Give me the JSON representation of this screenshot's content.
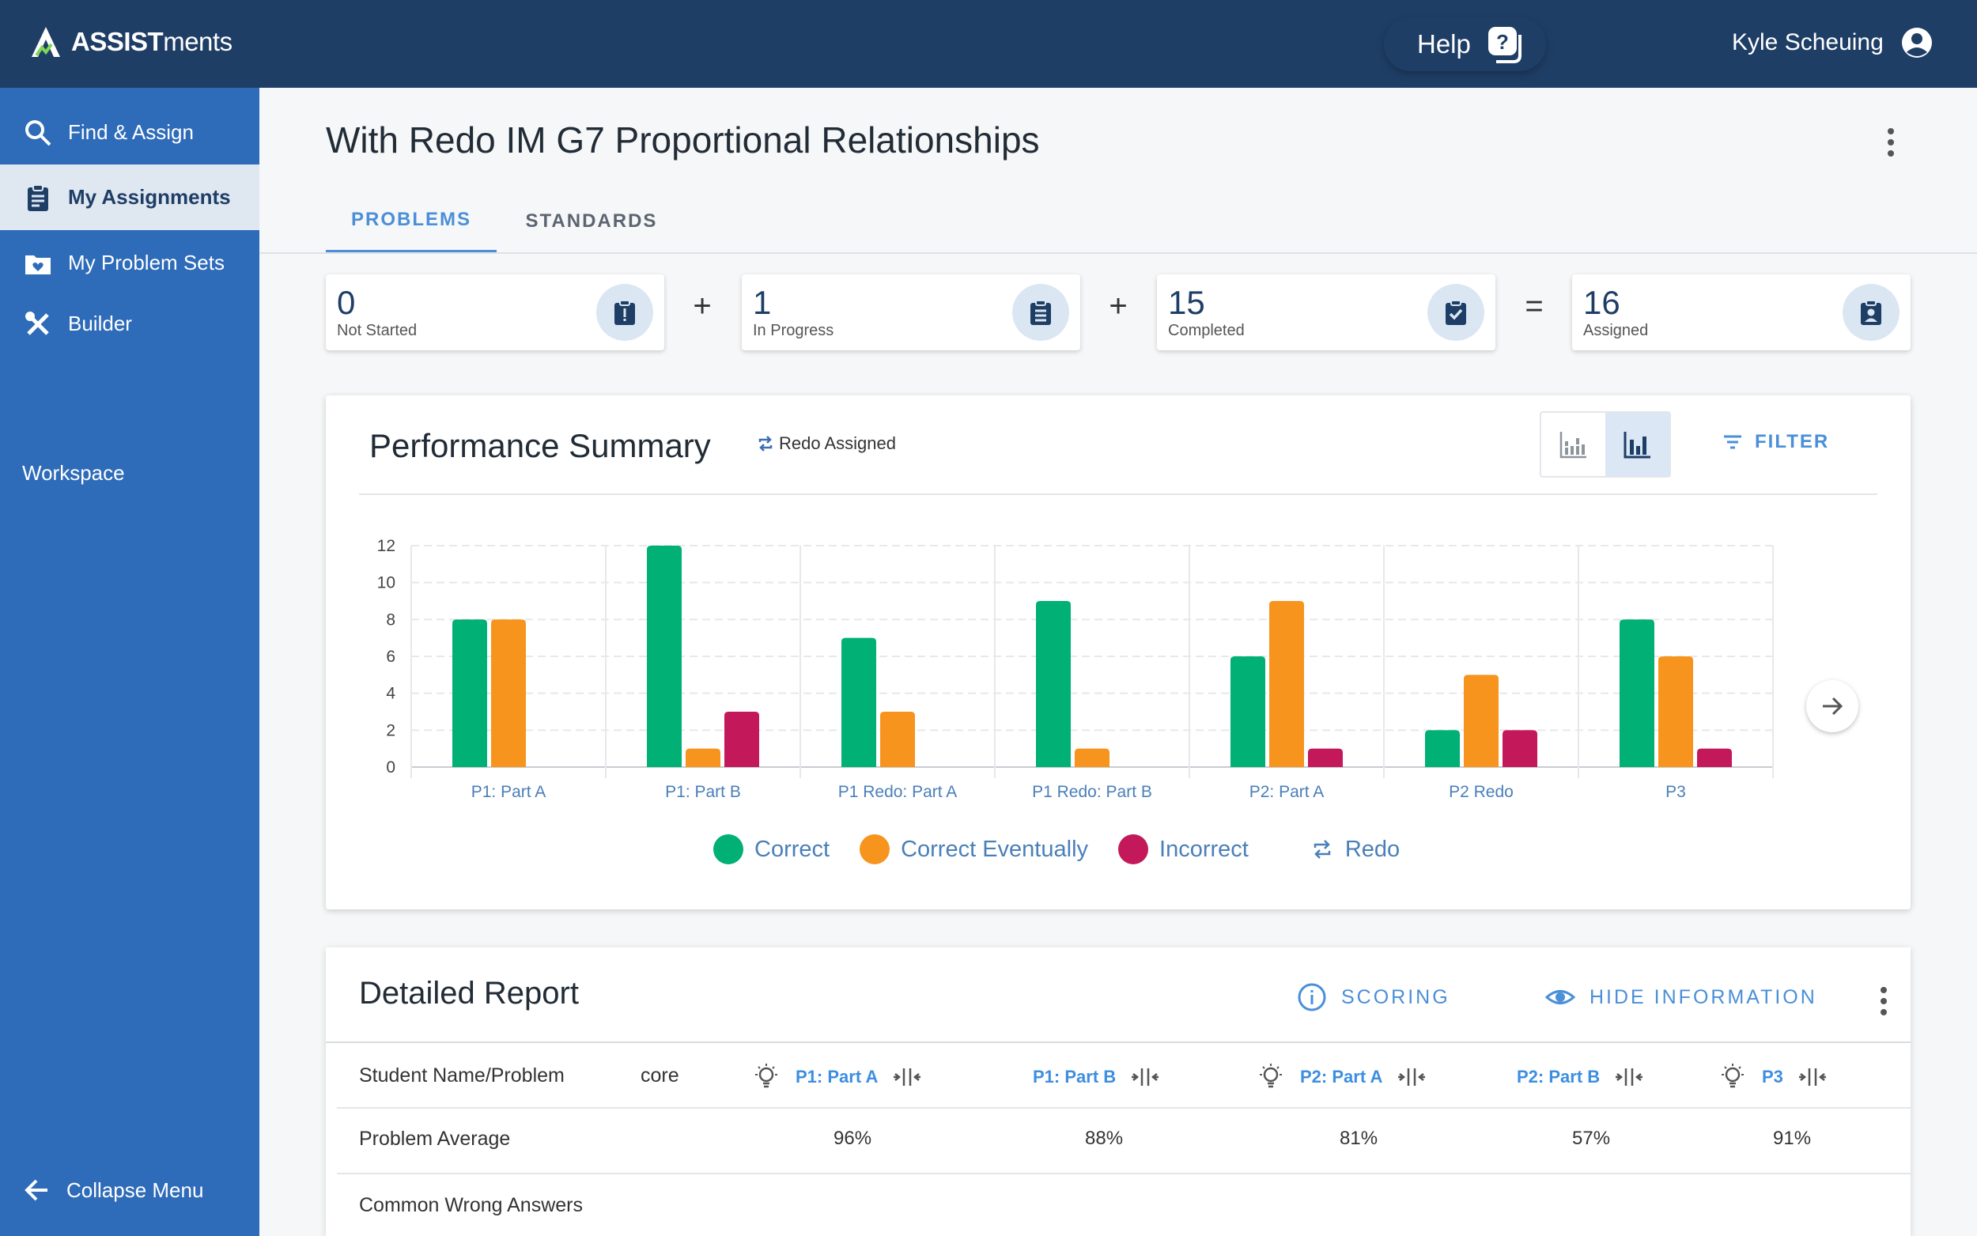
{
  "app": {
    "brand_bold": "ASSIST",
    "brand_rest": "ments",
    "help_label": "Help",
    "user_name": "Kyle Scheuing"
  },
  "sidebar": {
    "items": [
      {
        "label": "Find & Assign",
        "icon": "search-icon"
      },
      {
        "label": "My Assignments",
        "icon": "clipboard-icon",
        "active": true
      },
      {
        "label": "My Problem Sets",
        "icon": "folder-heart-icon"
      },
      {
        "label": "Builder",
        "icon": "tools-icon"
      }
    ],
    "workspace_label": "Workspace",
    "collapse_label": "Collapse Menu"
  },
  "page": {
    "title": "With Redo IM G7 Proportional Relationships",
    "tabs": [
      {
        "label": "PROBLEMS",
        "active": true
      },
      {
        "label": "STANDARDS",
        "active": false
      }
    ]
  },
  "stats": [
    {
      "value": "0",
      "label": "Not Started",
      "icon": "clipboard-alert-icon"
    },
    {
      "value": "1",
      "label": "In Progress",
      "icon": "clipboard-list-icon"
    },
    {
      "value": "15",
      "label": "Completed",
      "icon": "clipboard-check-icon"
    },
    {
      "value": "16",
      "label": "Assigned",
      "icon": "clipboard-account-icon"
    }
  ],
  "operators": [
    "+",
    "+",
    "="
  ],
  "performance": {
    "title": "Performance Summary",
    "redo_assigned_label": "Redo Assigned",
    "filter_label": "FILTER",
    "legend": [
      {
        "label": "Correct",
        "color": "#00b074"
      },
      {
        "label": "Correct Eventually",
        "color": "#f7941d"
      },
      {
        "label": "Incorrect",
        "color": "#c3185a"
      },
      {
        "label": "Redo",
        "icon": "redo-icon"
      }
    ]
  },
  "chart_data": {
    "type": "bar",
    "categories": [
      "P1: Part A",
      "P1: Part B",
      "P1 Redo: Part A",
      "P1 Redo: Part B",
      "P2: Part A",
      "P2 Redo",
      "P3"
    ],
    "series": [
      {
        "name": "Correct",
        "color": "#00b074",
        "values": [
          8,
          12,
          7,
          9,
          6,
          2,
          8
        ]
      },
      {
        "name": "Correct Eventually",
        "color": "#f7941d",
        "values": [
          8,
          1,
          3,
          1,
          9,
          5,
          6
        ]
      },
      {
        "name": "Incorrect",
        "color": "#c3185a",
        "values": [
          0,
          3,
          0,
          0,
          1,
          2,
          1
        ]
      }
    ],
    "yticks": [
      0,
      2,
      4,
      6,
      8,
      10,
      12
    ],
    "ylim": [
      0,
      12
    ],
    "grid": true,
    "legend_position": "bottom"
  },
  "report": {
    "title": "Detailed Report",
    "scoring_label": "SCORING",
    "hide_info_label": "HIDE INFORMATION",
    "student_col_label": "Student Name/Problem",
    "score_col_label": "core",
    "columns": [
      "P1: Part A",
      "P1: Part B",
      "P2: Part A",
      "P2: Part B",
      "P3"
    ],
    "problem_average_label": "Problem Average",
    "averages": [
      "96%",
      "88%",
      "81%",
      "57%",
      "91%"
    ],
    "common_wrong_label": "Common Wrong Answers"
  }
}
